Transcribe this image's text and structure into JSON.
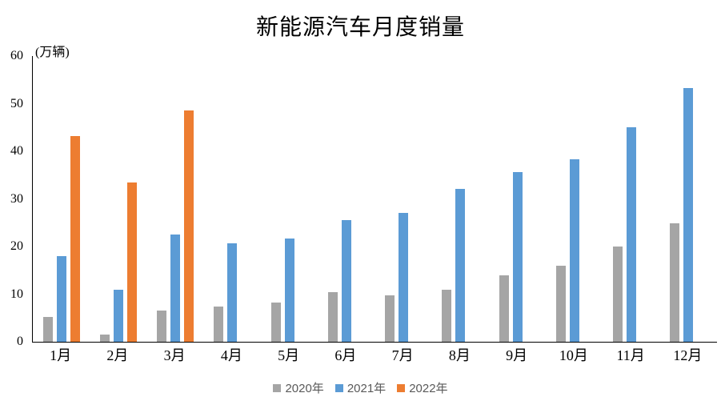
{
  "title": "新能源汽车月度销量",
  "y_axis_unit_label": "(万辆)",
  "colors": {
    "series_2020": "#A5A5A5",
    "series_2021": "#5B9BD5",
    "series_2022": "#ED7D31",
    "axis_line": "#000000",
    "legend_text": "#595959",
    "background": "#FFFFFF"
  },
  "chart_data": {
    "type": "bar",
    "title": "新能源汽车月度销量",
    "xlabel": "",
    "ylabel": "(万辆)",
    "categories": [
      "1月",
      "2月",
      "3月",
      "4月",
      "5月",
      "6月",
      "7月",
      "8月",
      "9月",
      "10月",
      "11月",
      "12月"
    ],
    "series": [
      {
        "name": "2020年",
        "color": "#A5A5A5",
        "values": [
          5.2,
          1.5,
          6.5,
          7.4,
          8.2,
          10.4,
          9.8,
          10.9,
          14.0,
          16.0,
          20.0,
          24.8
        ]
      },
      {
        "name": "2021年",
        "color": "#5B9BD5",
        "values": [
          18.0,
          11.0,
          22.6,
          20.6,
          21.7,
          25.6,
          27.1,
          32.1,
          35.7,
          38.3,
          45.0,
          53.2
        ]
      },
      {
        "name": "2022年",
        "color": "#ED7D31",
        "values": [
          43.2,
          33.5,
          48.5,
          null,
          null,
          null,
          null,
          null,
          null,
          null,
          null,
          null
        ]
      }
    ],
    "ylim": [
      0,
      60
    ],
    "yticks": [
      0,
      10,
      20,
      30,
      40,
      50,
      60
    ],
    "grid": false,
    "legend_position": "bottom"
  }
}
